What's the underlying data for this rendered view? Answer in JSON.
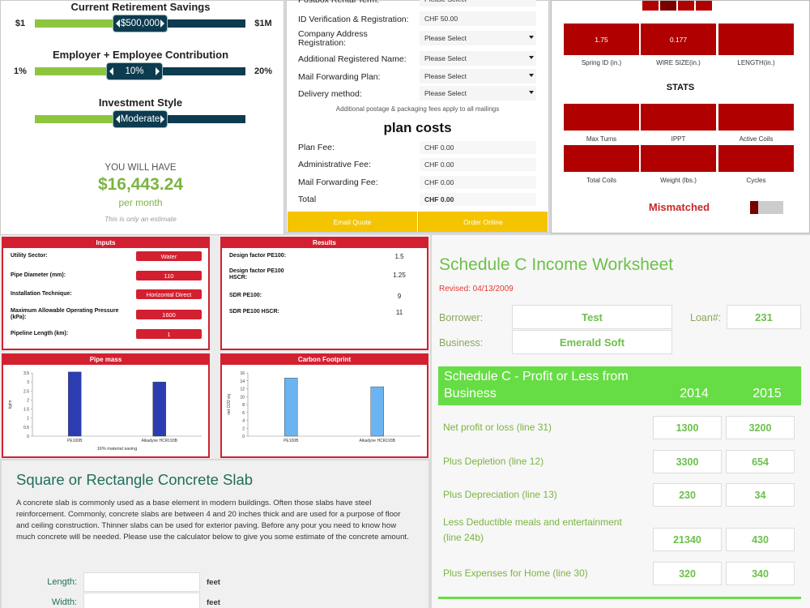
{
  "retirement": {
    "sliders": [
      {
        "title": "Current Retirement Savings",
        "min": "$1",
        "max": "$1M",
        "handle": "$500,000"
      },
      {
        "title": "Employer + Employee Contribution",
        "min": "1%",
        "max": "20%",
        "handle": "10%"
      },
      {
        "title": "Investment Style",
        "handle": "Moderate"
      }
    ],
    "result_label": "YOU WILL HAVE",
    "result": "$16,443.24",
    "result_unit": "per month",
    "disclaimer": "This is only an estimate"
  },
  "mail_form": {
    "rows": [
      {
        "label": "Postbox Rental Term:",
        "value": "Please Select"
      },
      {
        "label": "ID Verification & Registration:",
        "value": "CHF 50.00"
      },
      {
        "label": "Company Address Registration:",
        "value": "Please Select"
      },
      {
        "label": "Additional Registered Name:",
        "value": "Please Select"
      },
      {
        "label": "Mail Forwarding Plan:",
        "value": "Please Select"
      },
      {
        "label": "Delivery method:",
        "value": "Please Select"
      }
    ],
    "note": "Additional postage & packaging fees apply to all mailings",
    "costs_title": "plan costs",
    "costs": [
      {
        "label": "Plan Fee:",
        "value": "CHF 0.00"
      },
      {
        "label": "Administrative Fee:",
        "value": "CHF 0.00"
      },
      {
        "label": "Mail Forwarding Fee:",
        "value": "CHF 0.00"
      },
      {
        "label": "Total",
        "value": "CHF 0.00"
      }
    ],
    "buttons": [
      "Email Quote",
      "Order Online"
    ]
  },
  "spring": {
    "inputs": [
      {
        "label": "Spring ID (in.)",
        "value": "1.75"
      },
      {
        "label": "WIRE SIZE(in.)",
        "value": "0.177"
      },
      {
        "label": "LENGTH(in.)"
      }
    ],
    "stats_title": "STATS",
    "stats": [
      "Max Turns",
      "IPPT",
      "Active Coils",
      "Total Coils",
      "Weight (lbs.)",
      "Cycles"
    ],
    "status": "Mismatched"
  },
  "pipe": {
    "inputs_title": "Inputs",
    "inputs": [
      {
        "label": "Utility Sector:",
        "value": "Water"
      },
      {
        "label": "Pipe Diameter (mm):",
        "value": "110"
      },
      {
        "label": "Installation Technique:",
        "value": "Horizontal Direct"
      },
      {
        "label": "Maximum Allowable Operating Pressure (kPa):",
        "value": "1600"
      },
      {
        "label": "Pipeline Length (km):",
        "value": "1"
      }
    ],
    "results_title": "Results",
    "results": [
      {
        "label": "Design factor PE100:",
        "value": "1.5"
      },
      {
        "label": "Design factor PE100 HSCR:",
        "value": "1.25"
      },
      {
        "label": "SDR PE100:",
        "value": "9"
      },
      {
        "label": "SDR PE100 HSCR:",
        "value": "11"
      }
    ]
  },
  "chart_data": [
    {
      "type": "bar",
      "title": "Pipe mass",
      "y_label": "kg/m",
      "note": "16% material saving",
      "categories": [
        "PE100B",
        "Alkadyne HCR193B"
      ],
      "values": [
        3.55,
        3.0
      ],
      "color": "#2b3db0",
      "ylim": [
        0,
        3.5
      ],
      "yticks": [
        0,
        0.5,
        1,
        1.5,
        2,
        2.5,
        3,
        3.5
      ]
    },
    {
      "type": "bar",
      "title": "Carbon Footprint",
      "y_label": "net CO2 eq",
      "categories": [
        "PE100B",
        "Alkadyne HCR193B"
      ],
      "values": [
        14.7,
        12.5
      ],
      "color": "#6ab4f2",
      "ylim": [
        0,
        16
      ],
      "yticks": [
        0,
        2,
        4,
        6,
        8,
        10,
        12,
        14,
        16
      ]
    }
  ],
  "slab": {
    "title": "Square or Rectangle Concrete Slab",
    "description": "A concrete slab is commonly used as a base element in modern buildings. Often those slabs have steel reinforcement. Commonly, concrete slabs are between 4 and 20 inches thick and are used for a purpose of floor and ceiling construction. Thinner slabs can be used for exterior paving. Before any pour you need to know how much concrete will be needed. Please use the calculator below to give you some estimate of the concrete amount.",
    "fields": [
      {
        "label": "Length:",
        "unit": "feet"
      },
      {
        "label": "Width:",
        "unit": "feet"
      }
    ]
  },
  "schedule": {
    "title": "Schedule C Income Worksheet",
    "revised": "Revised: 04/13/2009",
    "borrower_label": "Borrower:",
    "borrower": "Test",
    "loan_label": "Loan#:",
    "loan": "231",
    "business_label": "Business:",
    "business": "Emerald Soft",
    "header": "Schedule C - Profit or Less from Business",
    "years": [
      "2014",
      "2015"
    ],
    "rows": [
      {
        "label": "Net profit or loss (line 31)",
        "values": [
          "1300",
          "3200"
        ]
      },
      {
        "label": "Plus Depletion (line 12)",
        "values": [
          "3300",
          "654"
        ]
      },
      {
        "label": "Plus Depreciation (line 13)",
        "values": [
          "230",
          "34"
        ]
      },
      {
        "label": "Less Deductible meals and entertainment (line 24b)",
        "values": [
          "21340",
          "430"
        ]
      },
      {
        "label": "Plus Expenses for Home (line 30)",
        "values": [
          "320",
          "340"
        ]
      }
    ]
  }
}
